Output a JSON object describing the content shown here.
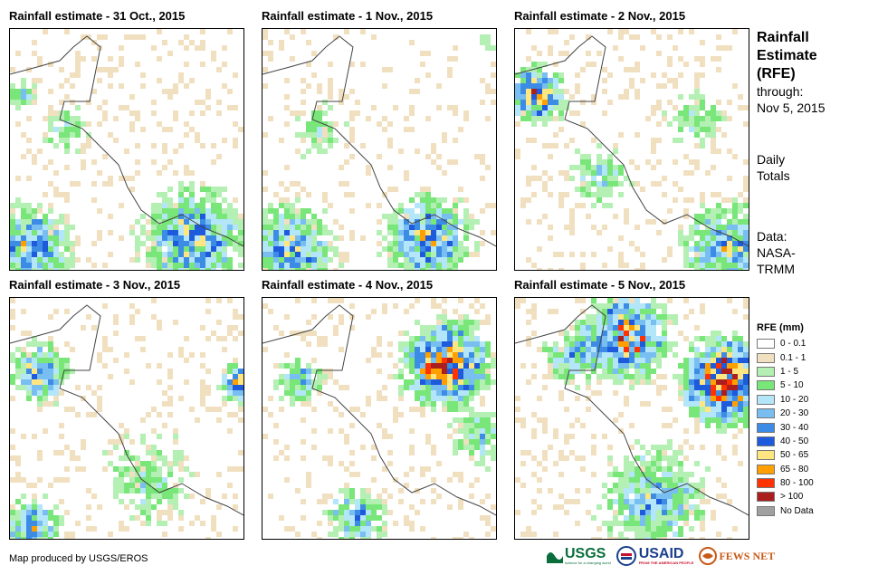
{
  "panels": [
    {
      "title": "Rainfall estimate - 31 Oct., 2015"
    },
    {
      "title": "Rainfall estimate - 1 Nov., 2015"
    },
    {
      "title": "Rainfall estimate - 2 Nov., 2015"
    },
    {
      "title": "Rainfall estimate - 3 Nov., 2015"
    },
    {
      "title": "Rainfall estimate - 4 Nov., 2015"
    },
    {
      "title": "Rainfall estimate - 5 Nov., 2015"
    }
  ],
  "side": {
    "title_lines": [
      "Rainfall",
      "Estimate",
      "(RFE)"
    ],
    "through_label": "through:",
    "through_date": "Nov 5, 2015",
    "daily_lines": [
      "Daily",
      "Totals"
    ],
    "data_lines": [
      "Data:",
      "NASA-",
      "TRMM"
    ]
  },
  "legend": {
    "title": "RFE (mm)",
    "items": [
      {
        "label": "0 - 0.1",
        "color": "#ffffff"
      },
      {
        "label": "0.1 - 1",
        "color": "#f0e0c0"
      },
      {
        "label": "1 - 5",
        "color": "#b4f0b4"
      },
      {
        "label": "5 - 10",
        "color": "#78e678"
      },
      {
        "label": "10 - 20",
        "color": "#b4e6fa"
      },
      {
        "label": "20 - 30",
        "color": "#78bef0"
      },
      {
        "label": "30 - 40",
        "color": "#3c8ce6"
      },
      {
        "label": "40 - 50",
        "color": "#1e5adc"
      },
      {
        "label": "50 - 65",
        "color": "#ffe680"
      },
      {
        "label": "65 - 80",
        "color": "#ffa000"
      },
      {
        "label": "80 - 100",
        "color": "#ff3200"
      },
      {
        "label": "> 100",
        "color": "#aa1e1e"
      },
      {
        "label": "No Data",
        "color": "#a0a0a0"
      }
    ]
  },
  "credit": "Map produced by USGS/EROS",
  "logos": {
    "usgs": "USGS",
    "usgs_tag": "science for a changing world",
    "usaid": "USAID",
    "usaid_tag": "FROM THE AMERICAN PEOPLE",
    "fewsnet": "FEWS NET"
  }
}
